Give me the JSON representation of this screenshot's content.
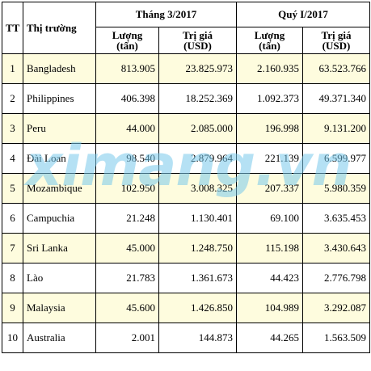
{
  "header": {
    "tt": "TT",
    "market": "Thị trường",
    "period1": "Tháng 3/2017",
    "period2": "Quý I/2017",
    "qty_label": "Lượng",
    "qty_unit": "(tấn)",
    "val_label": "Trị giá",
    "val_unit": "(USD)"
  },
  "rows": [
    {
      "tt": "1",
      "market": "Bangladesh",
      "m_qty": "813.905",
      "m_val": "23.825.973",
      "q_qty": "2.160.935",
      "q_val": "63.523.766"
    },
    {
      "tt": "2",
      "market": "Philippines",
      "m_qty": "406.398",
      "m_val": "18.252.369",
      "q_qty": "1.092.373",
      "q_val": "49.371.340"
    },
    {
      "tt": "3",
      "market": "Peru",
      "m_qty": "44.000",
      "m_val": "2.085.000",
      "q_qty": "196.998",
      "q_val": "9.131.200"
    },
    {
      "tt": "4",
      "market": "Đài Loan",
      "m_qty": "98.540",
      "m_val": "2.879.964",
      "q_qty": "221.139",
      "q_val": "6.599.977"
    },
    {
      "tt": "5",
      "market": "Mozambique",
      "m_qty": "102.950",
      "m_val": "3.008.325",
      "q_qty": "207.337",
      "q_val": "5.980.359"
    },
    {
      "tt": "6",
      "market": "Campuchia",
      "m_qty": "21.248",
      "m_val": "1.130.401",
      "q_qty": "69.100",
      "q_val": "3.635.453"
    },
    {
      "tt": "7",
      "market": "Sri Lanka",
      "m_qty": "45.000",
      "m_val": "1.248.750",
      "q_qty": "115.198",
      "q_val": "3.430.643"
    },
    {
      "tt": "8",
      "market": "Lào",
      "m_qty": "21.783",
      "m_val": "1.361.673",
      "q_qty": "44.423",
      "q_val": "2.776.798"
    },
    {
      "tt": "9",
      "market": "Malaysia",
      "m_qty": "45.600",
      "m_val": "1.426.850",
      "q_qty": "104.989",
      "q_val": "3.292.087"
    },
    {
      "tt": "10",
      "market": "Australia",
      "m_qty": "2.001",
      "m_val": "144.873",
      "q_qty": "44.265",
      "q_val": "1.563.509"
    }
  ],
  "watermark": "ximang.vn",
  "colors": {
    "odd_row_bg": "#fefcde",
    "even_row_bg": "#ffffff",
    "watermark": "#78c8eb"
  }
}
